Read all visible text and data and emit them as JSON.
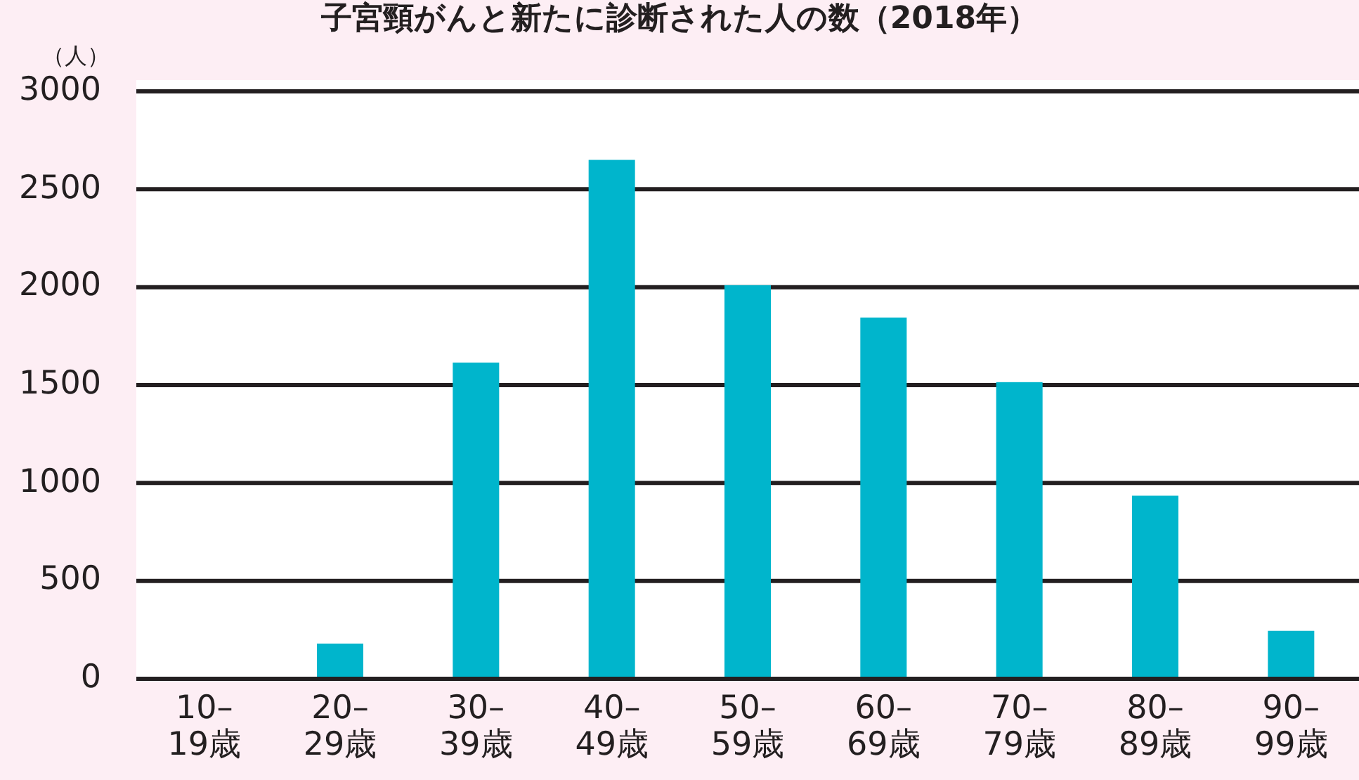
{
  "chart_data": {
    "type": "bar",
    "title": "子宮頸がんと新たに診断された人の数（2018年）",
    "ylabel": "（人）",
    "categories": [
      "10–19歳",
      "20–29歳",
      "30–39歳",
      "40–49歳",
      "50–59歳",
      "60–69歳",
      "70–79歳",
      "80–89歳",
      "90–99歳"
    ],
    "values": [
      0,
      180,
      1615,
      2650,
      2010,
      1845,
      1515,
      935,
      245
    ],
    "color": "#00b5cc",
    "ylim": [
      0,
      3000
    ],
    "yticks": [
      0,
      500,
      1000,
      1500,
      2000,
      2500,
      3000
    ],
    "grid": "y"
  }
}
